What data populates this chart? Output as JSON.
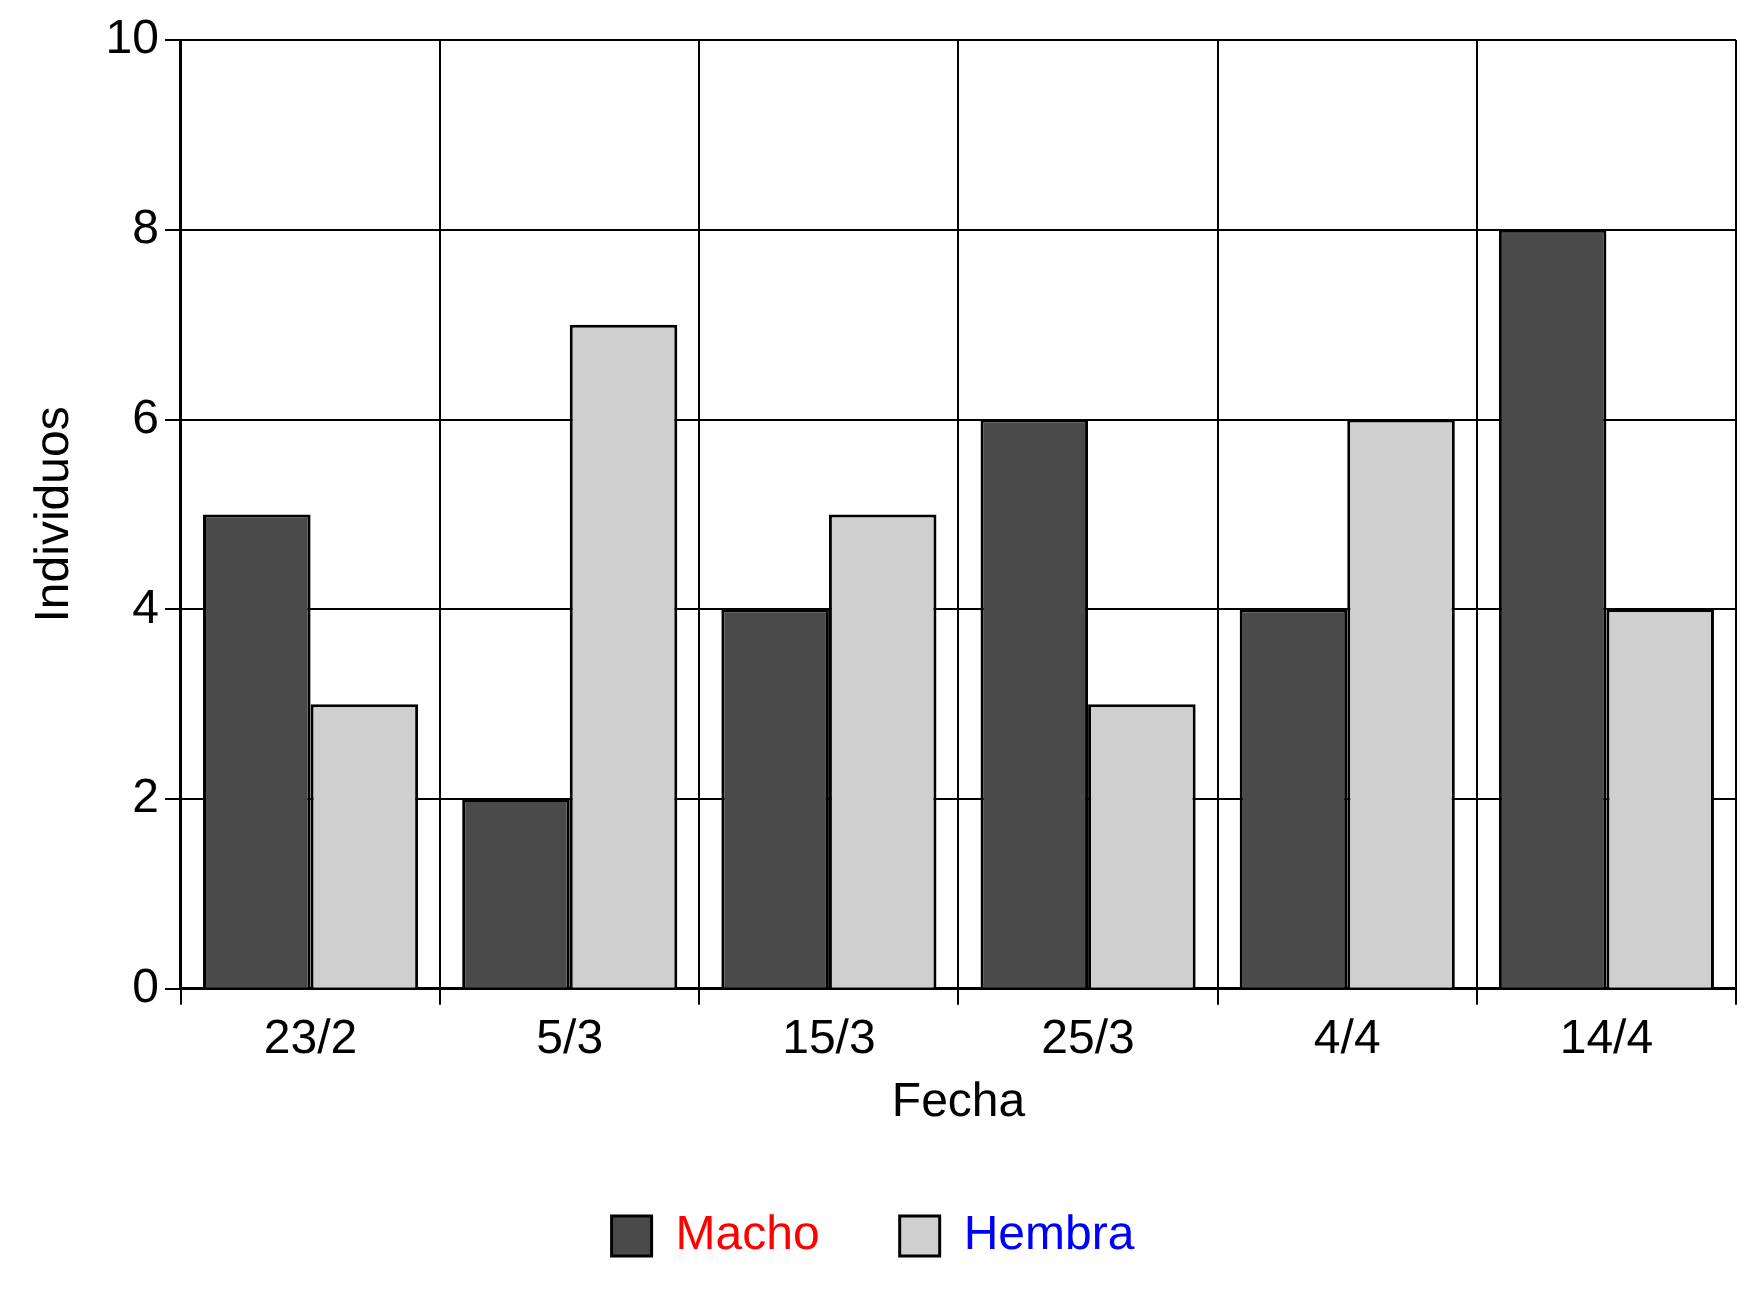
{
  "chart_data": {
    "type": "bar",
    "xlabel": "Fecha",
    "ylabel": "Individuos",
    "categories": [
      "23/2",
      "5/3",
      "15/3",
      "25/3",
      "4/4",
      "14/4"
    ],
    "series": [
      {
        "name": "Macho",
        "color": "#4a4a4a",
        "values": [
          5,
          2,
          4,
          6,
          4,
          8
        ]
      },
      {
        "name": "Hembra",
        "color": "#cfcfcf",
        "values": [
          3,
          7,
          5,
          3,
          6,
          4
        ]
      }
    ],
    "ylim": [
      0,
      10
    ],
    "yticks": [
      0,
      2,
      4,
      6,
      8,
      10
    ],
    "grid": true,
    "legend": "bottom"
  }
}
